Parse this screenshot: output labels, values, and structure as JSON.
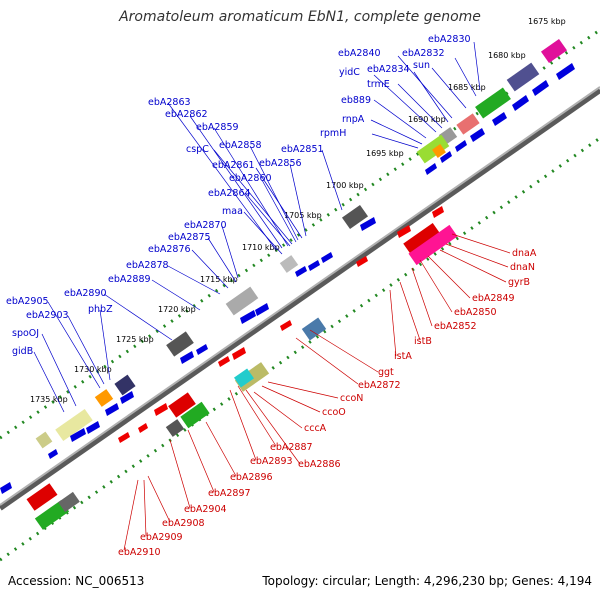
{
  "title": "Aromatoleum aromaticum EbN1, complete genome",
  "footer": {
    "accession": "Accession: NC_006513",
    "summary": "Topology: circular; Length: 4,296,230 bp; Genes: 4,194"
  },
  "kbp_labels": [
    "1675 kbp",
    "1680 kbp",
    "1685 kbp",
    "1690 kbp",
    "1695 kbp",
    "1700 kbp",
    "1705 kbp",
    "1710 kbp",
    "1715 kbp",
    "1720 kbp",
    "1725 kbp",
    "1730 kbp",
    "1735 kbp"
  ],
  "forward_labels": [
    "ebA2830",
    "ebA2832",
    "sun",
    "ebA2840",
    "ebA2834",
    "yidC",
    "trmE",
    "eb889",
    "rnpA",
    "rpmH",
    "ebA2863",
    "ebA2862",
    "ebA2859",
    "cspC",
    "ebA2858",
    "ebA2861",
    "ebA2856",
    "ebA2851",
    "ebA2860",
    "ebA2864",
    "maa",
    "ebA2870",
    "ebA2875",
    "ebA2876",
    "ebA2878",
    "ebA2889",
    "ebA2890",
    "ebA2905",
    "ebA2903",
    "phbZ",
    "spoOJ",
    "gidB"
  ],
  "reverse_labels": [
    "dnaA",
    "dnaN",
    "gyrB",
    "ebA2849",
    "ebA2850",
    "istB",
    "ebA2852",
    "istA",
    "ggt",
    "ebA2872",
    "ccoN",
    "ccoO",
    "cccA",
    "ebA2887",
    "ebA2893",
    "ebA2886",
    "ebA2896",
    "ebA2897",
    "ebA2904",
    "ebA2908",
    "ebA2909",
    "ebA2910"
  ],
  "colors": {
    "forward": "#0000dd",
    "reverse": "#ee0000",
    "backbone": "#808080",
    "tick": "#228822"
  }
}
